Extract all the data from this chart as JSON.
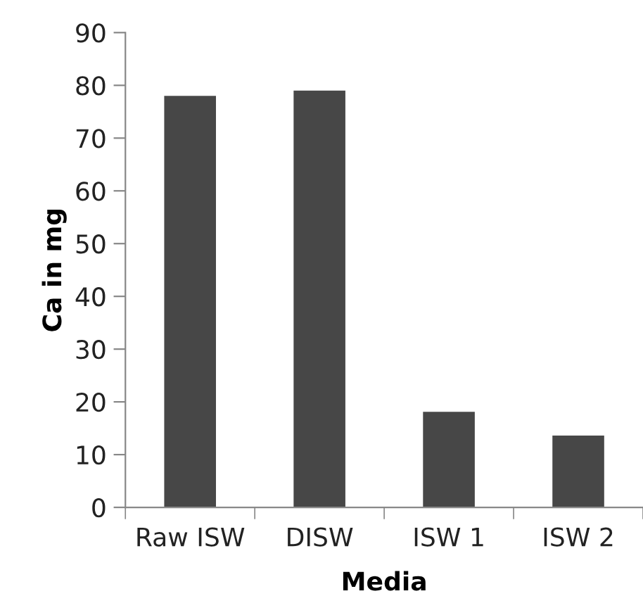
{
  "chart_data": {
    "type": "bar",
    "xlabel": "Media",
    "ylabel": "Ca in mg",
    "categories": [
      "Raw ISW",
      "DISW",
      "ISW 1",
      "ISW 2"
    ],
    "values": [
      78,
      79,
      18.1,
      13.6
    ],
    "color": "#474747",
    "ylim": [
      0,
      90
    ],
    "yticks": [
      0,
      10,
      20,
      30,
      40,
      50,
      60,
      70,
      80,
      90
    ],
    "grid": false
  }
}
